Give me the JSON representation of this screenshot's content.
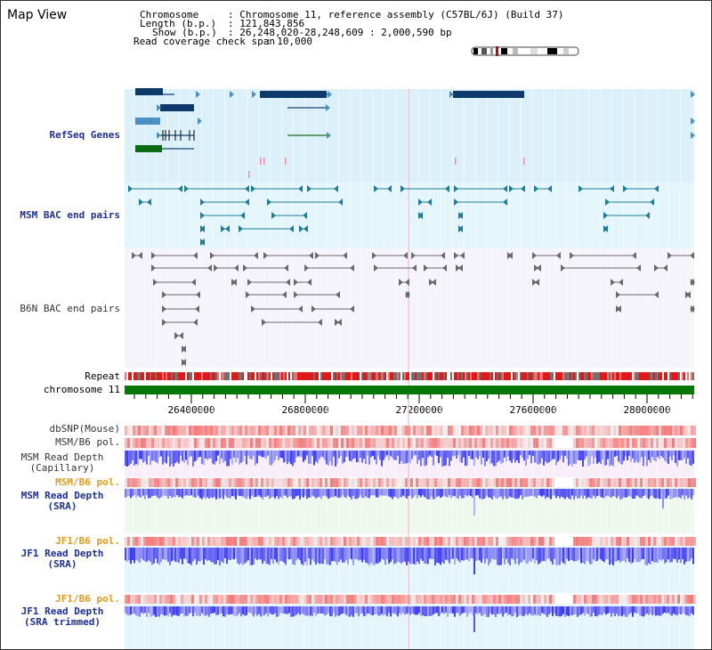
{
  "page": {
    "title": "Map View"
  },
  "info": {
    "chromosome_label": "Chromosome",
    "chromosome_value": ": Chromosome 11, reference assembly (C57BL/6J) (Build 37)",
    "length_label": "Length (b.p.)",
    "length_value": ": 121,843,856",
    "show_label": "Show (b.p.)",
    "show_value": ": 26,248,020-28,248,609 : 2,000,590 bp",
    "coverage_label": "Read coverage check span",
    "coverage_value": ": 10,000"
  },
  "tracks": {
    "refseq": "RefSeq Genes",
    "msm_bac": "MSM BAC end pairs",
    "b6n_bac": "B6N BAC end pairs",
    "repeat": "Repeat",
    "chromosome": "chromosome 11",
    "dbsnp": "dbSNP(Mouse)",
    "msm_b6_pol_1": "MSM/B6 pol.",
    "msm_read_depth_cap_1": "MSM Read Depth",
    "msm_read_depth_cap_2": "(Capillary)",
    "msm_b6_pol_2": "MSM/B6 pol.",
    "msm_read_depth_sra_1": "MSM Read Depth",
    "msm_read_depth_sra_2": "(SRA)",
    "jf1_b6_pol_1": "JF1/B6 pol.",
    "jf1_read_depth_sra_1": "JF1 Read Depth",
    "jf1_read_depth_sra_2": "(SRA)",
    "jf1_b6_pol_2": "JF1/B6 pol.",
    "jf1_read_depth_trim_1": "JF1 Read Depth",
    "jf1_read_depth_trim_2": "(SRA trimmed)"
  },
  "axis": {
    "ticks": [
      "26400000",
      "26800000",
      "27200000",
      "27600000",
      "28000000"
    ]
  },
  "colors": {
    "refseq_bg": "#dcf0fa",
    "msm_bg": "#e4f6fb",
    "b6n_bg": "#f4f4fa",
    "gene_dark": "#0e3b6c",
    "gene_light": "#4a90c0",
    "gene_green": "#0d6b12",
    "bac_teal": "#1f7d99",
    "bac_grey": "#6a6a6a",
    "chrom_green": "#077807",
    "depth_blue": "#4a4af0",
    "pol_red": "#f05050",
    "pol_orange_label": "#e39b1e",
    "label_blue": "#1d2f9c"
  }
}
